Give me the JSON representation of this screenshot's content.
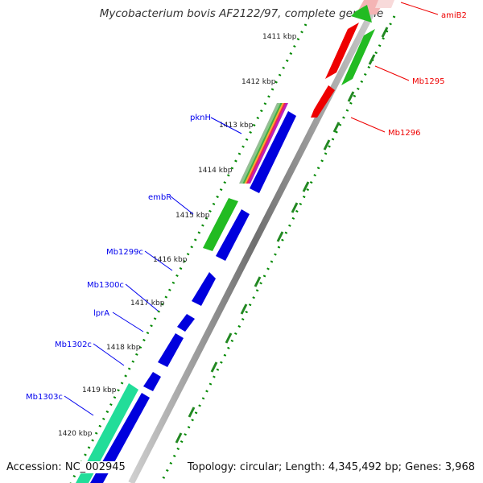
{
  "title": "Mycobacterium bovis AF2122/97, complete genome",
  "footer": {
    "accession_label": "Accession:",
    "accession_value": "NC_002945",
    "topology_text": "Topology: circular; Length: 4,345,492 bp; Genes: 3,968"
  },
  "ticks": [
    "1411 kbp",
    "1412 kbp",
    "1413 kbp",
    "1414 kbp",
    "1415 kbp",
    "1416 kbp",
    "1417 kbp",
    "1418 kbp",
    "1419 kbp",
    "1420 kbp"
  ],
  "genes_forward": [
    {
      "label": "amiB2",
      "color": "#ee0000"
    },
    {
      "label": "Mb1295",
      "color": "#ee0000"
    },
    {
      "label": "Mb1296",
      "color": "#ee0000"
    }
  ],
  "genes_reverse": [
    {
      "label": "pknH",
      "color": "#0000ee"
    },
    {
      "label": "embR",
      "color": "#0000ee"
    },
    {
      "label": "Mb1299c",
      "color": "#0000ee"
    },
    {
      "label": "Mb1300c",
      "color": "#0000ee"
    },
    {
      "label": "lprA",
      "color": "#0000ee"
    },
    {
      "label": "Mb1302c",
      "color": "#0000ee"
    },
    {
      "label": "Mb1303c",
      "color": "#0000ee"
    }
  ],
  "colors": {
    "forward_cds": "#ee0000",
    "reverse_cds": "#0000dd",
    "feature_green": "#22bb22",
    "feature_teal": "#22dd99",
    "backbone": "#888888",
    "tick_dots": "#008800"
  }
}
